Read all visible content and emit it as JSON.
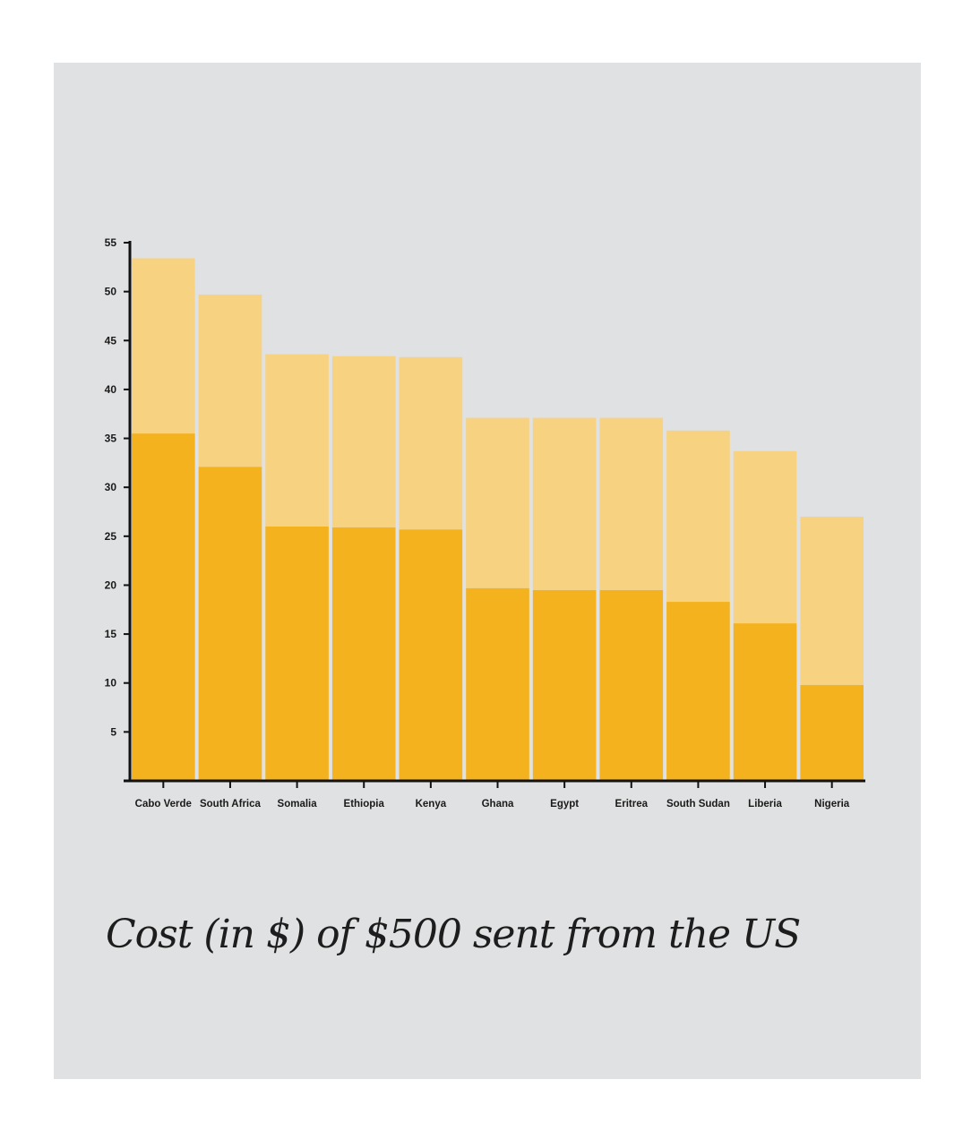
{
  "caption": "Cost (in $) of $500 sent from the US",
  "colors": {
    "panel_background": "#e0e1e2",
    "bar_lower": "#f4b31e",
    "bar_upper": "#f6d281",
    "axis": "#111111"
  },
  "chart_data": {
    "type": "bar",
    "stacked": true,
    "title": "Cost (in $) of $500 sent from the US",
    "xlabel": "",
    "ylabel": "",
    "ylim": [
      0,
      55
    ],
    "yticks": [
      5,
      10,
      15,
      20,
      25,
      30,
      35,
      40,
      45,
      50,
      55
    ],
    "grid": false,
    "categories": [
      "Cabo Verde",
      "South Africa",
      "Somalia",
      "Ethiopia",
      "Kenya",
      "Ghana",
      "Egypt",
      "Eritrea",
      "South Sudan",
      "Liberia",
      "Nigeria"
    ],
    "series": [
      {
        "color": "#f4b31e",
        "values": [
          35.5,
          32.1,
          26.0,
          25.9,
          25.7,
          19.7,
          19.5,
          19.5,
          18.3,
          16.1,
          9.8
        ]
      },
      {
        "color": "#f6d281",
        "values": [
          17.9,
          17.6,
          17.6,
          17.5,
          17.6,
          17.4,
          17.6,
          17.6,
          17.5,
          17.6,
          17.2
        ]
      }
    ]
  }
}
